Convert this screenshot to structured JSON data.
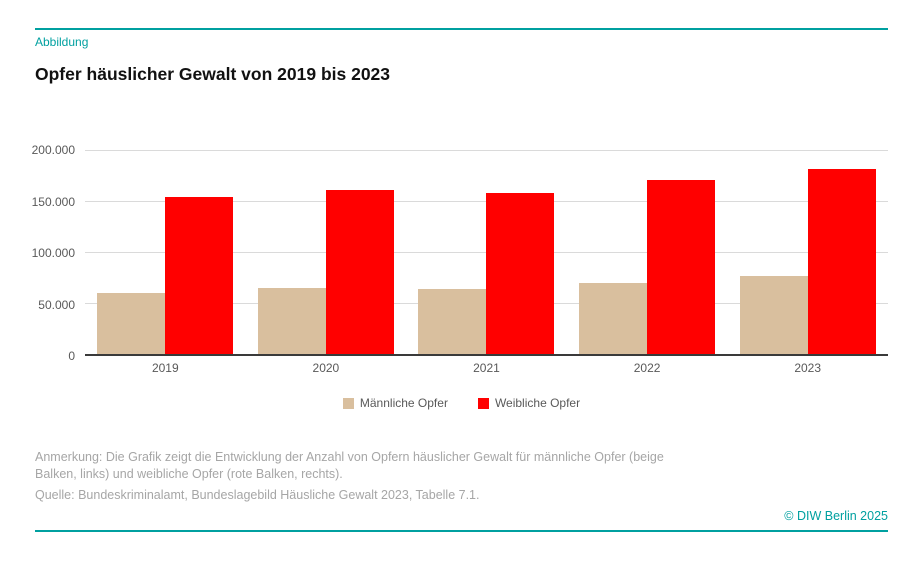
{
  "header": {
    "kicker": "Abbildung",
    "title": "Opfer häuslicher Gewalt von 2019 bis 2023"
  },
  "footer": {
    "note": "Anmerkung: Die Grafik zeigt die Entwicklung der Anzahl von Opfern häuslicher Gewalt für männliche Opfer (beige Balken, links) und weibliche Opfer (rote Balken, rechts).",
    "source": "Quelle: Bundeskriminalamt, Bundeslagebild Häusliche Gewalt 2023, Tabelle 7.1.",
    "copyright": "© DIW Berlin 2025"
  },
  "colors": {
    "accent": "#00A0A0",
    "male_bar": "#D9BF9E",
    "female_bar": "#FF0000",
    "gridline": "#DADADA",
    "axis_line": "#3A3A3A",
    "tick_text": "#595959",
    "footnote_text": "#A6A6A6",
    "title_text": "#111111"
  },
  "chart_data": {
    "type": "bar",
    "title": "Opfer häuslicher Gewalt von 2019 bis 2023",
    "categories": [
      "2019",
      "2020",
      "2021",
      "2022",
      "2023"
    ],
    "series": [
      {
        "id": "maennliche-opfer",
        "name": "Männliche Opfer",
        "color": "#D9BF9E",
        "values": [
          60000,
          65000,
          64000,
          69500,
          76000
        ]
      },
      {
        "id": "weibliche-opfer",
        "name": "Weibliche Opfer",
        "color": "#FF0000",
        "values": [
          154000,
          161000,
          158000,
          171000,
          181000
        ]
      }
    ],
    "xlabel": "",
    "ylabel": "",
    "ylim": [
      0,
      200000
    ],
    "yticks": [
      0,
      50000,
      100000,
      150000,
      200000
    ],
    "ytick_labels": [
      "0",
      "50.000",
      "100.000",
      "150.000",
      "200.000"
    ],
    "grid": true,
    "legend_position": "bottom"
  }
}
